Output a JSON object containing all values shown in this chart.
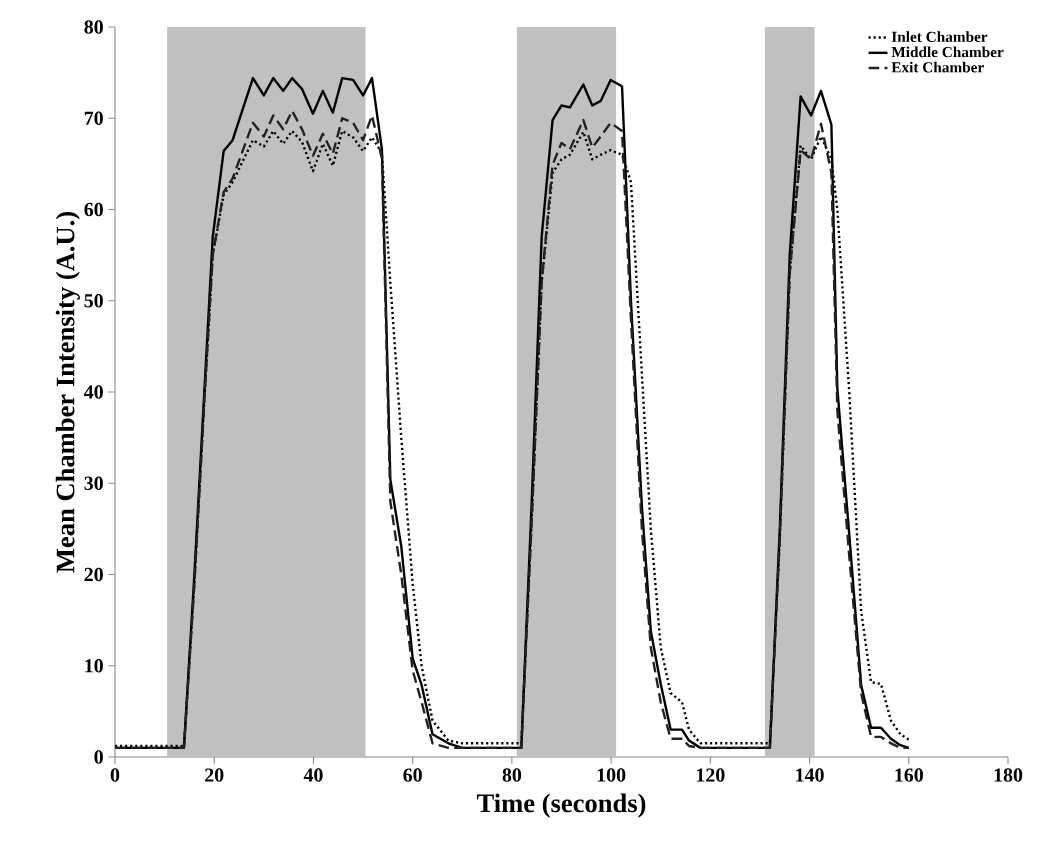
{
  "chart_data": {
    "type": "line",
    "xlabel": "Time (seconds)",
    "ylabel": "Mean Chamber Intensity (A.U.)",
    "xlim": [
      0,
      180
    ],
    "ylim": [
      0,
      80
    ],
    "xticks": [
      0,
      20,
      40,
      60,
      80,
      100,
      120,
      140,
      160,
      180
    ],
    "yticks": [
      0,
      10,
      20,
      30,
      40,
      50,
      60,
      70,
      80
    ],
    "legend": "top right",
    "bands": [
      {
        "axis": "x",
        "from": 10.5,
        "to": 50.5,
        "color": "#c0c0c0"
      },
      {
        "axis": "x",
        "from": 81,
        "to": 101,
        "color": "#c0c0c0"
      },
      {
        "axis": "x",
        "from": 131,
        "to": 141,
        "color": "#c0c0c0"
      }
    ],
    "series": [
      {
        "name": "Inlet Chamber",
        "color": "#000000",
        "line_style": "dotted",
        "x": [
          0,
          2,
          4,
          6,
          8,
          10,
          12,
          13.9,
          16,
          18,
          19.7,
          21.9,
          23.7,
          27.8,
          30,
          31.9,
          33.9,
          35.7,
          37.7,
          39.9,
          41.9,
          43.9,
          45.8,
          48,
          50,
          51.8,
          53.8,
          55.5,
          57.7,
          60,
          61.8,
          64,
          67.2,
          70,
          75,
          80,
          81.9,
          84,
          86,
          88.2,
          90,
          91.7,
          94.4,
          96.2,
          97.9,
          99.9,
          102.2,
          104,
          106.2,
          108,
          110,
          112,
          114.3,
          115.7,
          118,
          125,
          130,
          132,
          134,
          136,
          138.2,
          140.3,
          142.3,
          144.4,
          145.6,
          148,
          150.4,
          152.4,
          154.4,
          156.4,
          158.3,
          160
        ],
        "values": [
          1.2,
          1.2,
          1.2,
          1.2,
          1.2,
          1.2,
          1.2,
          1.2,
          19,
          39,
          55,
          61.6,
          63,
          67.6,
          66.9,
          68.6,
          67.2,
          68.6,
          67.4,
          64.2,
          67.2,
          64.8,
          68.6,
          67.9,
          66.4,
          67.9,
          66.2,
          52,
          35,
          19,
          10,
          4,
          1.8,
          1.5,
          1.5,
          1.5,
          1.5,
          26,
          52,
          64,
          65.5,
          66,
          68.5,
          65.5,
          66,
          66.5,
          66,
          63,
          42,
          25,
          12,
          7,
          6,
          3,
          1.5,
          1.5,
          1.5,
          1.5,
          24,
          53,
          67,
          65.5,
          68,
          65.5,
          60,
          40,
          16,
          8.2,
          8,
          4,
          2.5,
          1.9
        ]
      },
      {
        "name": "Middle Chamber",
        "color": "#000000",
        "line_style": "solid",
        "x": [
          0,
          2,
          4,
          6,
          8,
          10,
          12,
          13.9,
          16,
          18,
          19.7,
          21.9,
          23.7,
          27.8,
          30,
          31.9,
          33.9,
          35.7,
          37.7,
          39.9,
          41.9,
          43.9,
          45.8,
          48,
          50,
          51.8,
          53.8,
          55.5,
          57.7,
          60,
          61.8,
          64,
          67.2,
          70,
          75,
          80,
          81.9,
          84,
          86,
          88.2,
          90,
          91.7,
          94.4,
          96.2,
          97.9,
          99.9,
          102.2,
          104,
          106.2,
          108,
          110,
          112,
          114.3,
          115.7,
          118,
          125,
          130,
          132,
          134,
          136,
          138.2,
          140.3,
          142.3,
          144.4,
          145.6,
          148,
          150.4,
          152.4,
          154.4,
          156.4,
          158.3,
          160
        ],
        "values": [
          1,
          1,
          1,
          1,
          1,
          1,
          1,
          1,
          20,
          40,
          57,
          66.4,
          67.6,
          74.4,
          72.5,
          74.4,
          73,
          74.4,
          73.2,
          70.5,
          73,
          70.6,
          74.4,
          74.2,
          72.5,
          74.4,
          66.6,
          30.4,
          23.1,
          10.8,
          7.9,
          2.5,
          1.5,
          1,
          1,
          1,
          1,
          28,
          57,
          69.8,
          71.4,
          71.2,
          73.7,
          71.4,
          71.9,
          74.2,
          73.5,
          50,
          27.5,
          13.8,
          8,
          3,
          3,
          1.8,
          1,
          1,
          1,
          1,
          25,
          55,
          72.4,
          70.3,
          73,
          69.3,
          40.4,
          24.4,
          7.9,
          3.2,
          3.2,
          2,
          1.3,
          1
        ]
      },
      {
        "name": "Exit Chamber",
        "color": "#222222",
        "line_style": "dashed",
        "x": [
          0,
          2,
          4,
          6,
          8,
          10,
          12,
          13.9,
          16,
          18,
          19.7,
          21.9,
          23.7,
          27.8,
          30,
          31.9,
          33.9,
          35.7,
          37.7,
          39.9,
          41.9,
          43.9,
          45.8,
          48,
          50,
          51.8,
          53.8,
          55.5,
          57.7,
          60,
          61.8,
          64,
          67.2,
          70,
          75,
          80,
          81.9,
          84,
          86,
          88.2,
          90,
          91.7,
          94.4,
          96.2,
          97.9,
          99.9,
          102.2,
          104,
          106.2,
          108,
          110,
          112,
          114.3,
          115.7,
          118,
          125,
          130,
          132,
          134,
          136,
          138.2,
          140.3,
          142.3,
          144.4,
          145.6,
          148,
          150.4,
          152.4,
          154.4,
          156.4,
          158.3,
          160
        ],
        "values": [
          1,
          1,
          1,
          1,
          1,
          1,
          1,
          1,
          19,
          39,
          55,
          61.9,
          63.4,
          69.5,
          68,
          70.3,
          68.8,
          70.8,
          68.8,
          65.9,
          68.3,
          66.1,
          70,
          69.5,
          67.6,
          70.3,
          65.6,
          28,
          20,
          9.5,
          6,
          1.5,
          1,
          1,
          1,
          1,
          1,
          26,
          52,
          64.9,
          67.3,
          66.6,
          69.8,
          66.8,
          68,
          69.5,
          68.6,
          48,
          25,
          12,
          6,
          2,
          2,
          1.2,
          1,
          1,
          1,
          1,
          24,
          53,
          66.5,
          65.5,
          69.4,
          64,
          38,
          22,
          7,
          2.2,
          2.2,
          1.5,
          1,
          1
        ]
      }
    ]
  }
}
